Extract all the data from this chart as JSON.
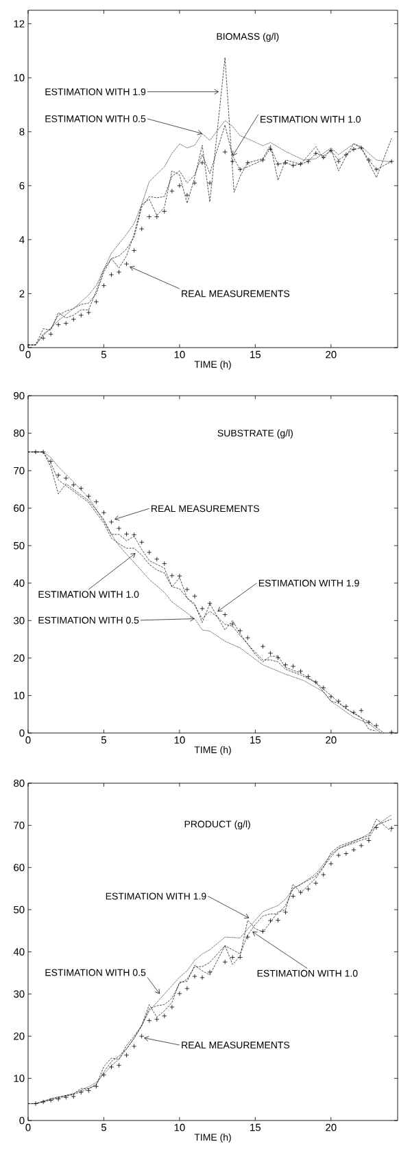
{
  "chart_data": [
    {
      "type": "line",
      "title": "BIOMASS (g/l)",
      "xlabel": "TIME (h)",
      "xlim": [
        0,
        24.4
      ],
      "xticks": [
        0,
        5,
        10,
        15,
        20
      ],
      "ylim": [
        0,
        12.5
      ],
      "yticks": [
        0,
        2,
        4,
        6,
        8,
        10,
        12
      ],
      "annotations": [
        {
          "text": "ESTIMATION WITH 1.9",
          "x": 12.6,
          "y": 9.48
        },
        {
          "text": "ESTIMATION WITH 0.5",
          "x": 11.5,
          "y": 7.93
        },
        {
          "text": "ESTIMATION WITH 1.0",
          "x": 13.5,
          "y": 7.1
        },
        {
          "text": "REAL MEASUREMENTS",
          "x": 6.7,
          "y": 3.0
        }
      ],
      "series": [
        {
          "type": "scatter",
          "marker": "cross",
          "color": "#000000",
          "x": [
            1,
            1.5,
            2,
            2.5,
            3,
            3.5,
            4,
            4.5,
            5,
            5.5,
            6,
            6.5,
            7,
            7.5,
            8,
            8.5,
            9,
            9.5,
            10,
            10.5,
            11,
            11.5,
            12,
            13,
            13.5,
            14,
            14.5,
            15.5,
            16,
            16.5,
            17,
            17.5,
            18,
            18.5,
            19,
            19.5,
            20,
            20.5,
            21,
            21.5,
            22,
            22.5,
            23,
            24
          ],
          "values": [
            0.35,
            0.5,
            0.85,
            0.9,
            1.05,
            1.2,
            1.3,
            1.7,
            2.3,
            2.7,
            2.8,
            3.1,
            3.6,
            4.4,
            4.85,
            4.85,
            5.05,
            5.8,
            6.0,
            5.65,
            6.1,
            6.85,
            6.1,
            7.25,
            6.9,
            6.6,
            6.85,
            6.95,
            7.35,
            6.8,
            6.85,
            6.75,
            6.8,
            6.9,
            7.2,
            7.05,
            7.3,
            6.9,
            7.15,
            7.35,
            7.4,
            6.95,
            6.6,
            6.9
          ]
        },
        {
          "line_style": "dotted",
          "color": "#000000",
          "x": [
            0,
            0.5,
            1,
            2,
            3,
            4,
            4.5,
            5,
            5.5,
            6,
            6.5,
            7,
            7.5,
            8,
            9,
            9.5,
            10,
            10.5,
            11,
            11.5,
            12,
            13,
            13.5,
            14,
            14.5,
            15.5,
            16,
            17,
            18.2,
            19,
            20,
            20.5,
            21.5,
            22,
            23,
            24
          ],
          "values": [
            0.1,
            0.1,
            0.45,
            1.0,
            1.45,
            1.95,
            2.3,
            2.9,
            3.5,
            3.85,
            4.2,
            4.6,
            5.3,
            6.15,
            6.7,
            7.2,
            7.55,
            7.4,
            7.5,
            7.93,
            7.68,
            8.41,
            8.2,
            7.85,
            7.74,
            7.48,
            7.6,
            7.27,
            6.95,
            7.0,
            7.4,
            7.15,
            7.55,
            7.45,
            6.95,
            6.88
          ]
        },
        {
          "line_style": "dashed",
          "color": "#000000",
          "x": [
            0,
            0.5,
            1,
            1.5,
            2,
            2.5,
            3,
            3.5,
            4,
            4.5,
            5,
            5.5,
            6,
            6.5,
            7,
            7.5,
            8,
            8.5,
            9,
            9.5,
            10,
            10.5,
            11,
            11.5,
            12,
            13,
            13.5,
            14,
            14.5,
            15.5,
            16,
            16.5,
            17,
            17.5,
            18,
            18.5,
            19,
            19.5,
            20,
            20.5,
            21,
            21.5,
            22,
            22.5,
            23,
            24
          ],
          "values": [
            0.1,
            0.1,
            0.5,
            0.7,
            1.2,
            1.35,
            1.45,
            1.6,
            1.65,
            2.0,
            2.8,
            3.3,
            3.4,
            3.65,
            4.1,
            5.2,
            5.6,
            5.55,
            5.6,
            6.35,
            6.55,
            6.1,
            6.4,
            7.15,
            6.45,
            8.25,
            7.1,
            6.6,
            6.7,
            6.95,
            7.4,
            6.8,
            6.85,
            6.75,
            6.8,
            6.9,
            7.2,
            7.1,
            7.3,
            6.95,
            7.15,
            7.35,
            7.4,
            6.95,
            6.6,
            6.9
          ]
        },
        {
          "line_style": "dashed",
          "color": "#000000",
          "x": [
            0,
            0.5,
            1,
            1.5,
            2,
            2.5,
            3,
            3.5,
            4,
            4.5,
            5,
            5.5,
            6,
            6.5,
            7,
            7.5,
            8,
            8.5,
            9,
            9.5,
            10,
            10.5,
            11,
            11.5,
            12,
            13,
            13.6,
            14,
            14.5,
            15.5,
            16,
            16.5,
            17,
            18,
            19,
            19.5,
            20,
            20.5,
            21,
            21.5,
            22,
            23,
            24
          ],
          "values": [
            0.1,
            0.1,
            0.7,
            0.65,
            1.3,
            1.1,
            1.2,
            1.4,
            1.4,
            2.1,
            2.9,
            3.3,
            2.95,
            3.4,
            4.2,
            5.3,
            5.5,
            4.9,
            5.2,
            6.55,
            6.4,
            5.35,
            6.3,
            7.5,
            5.4,
            10.75,
            5.75,
            6.35,
            6.85,
            7.0,
            7.5,
            6.2,
            6.95,
            6.8,
            7.45,
            7.0,
            7.35,
            6.55,
            7.1,
            7.55,
            7.4,
            6.3,
            7.75
          ]
        }
      ]
    },
    {
      "type": "line",
      "title": "SUBSTRATE (g/l)",
      "xlabel": "TIME (h)",
      "xlim": [
        0,
        24.4
      ],
      "xticks": [
        0,
        5,
        10,
        15,
        20
      ],
      "ylim": [
        0,
        90
      ],
      "yticks": [
        0,
        10,
        20,
        30,
        40,
        50,
        60,
        70,
        80,
        90
      ],
      "annotations": [
        {
          "text": "REAL MEASUREMENTS",
          "x": 5.7,
          "y": 57.0
        },
        {
          "text": "ESTIMATION WITH 1.0",
          "x": 7.1,
          "y": 48.0
        },
        {
          "text": "ESTIMATION WITH 0.5",
          "x": 11,
          "y": 30.5
        },
        {
          "text": "ESTIMATION WITH 1.9",
          "x": 12.5,
          "y": 32.4
        }
      ],
      "series": [
        {
          "type": "scatter",
          "marker": "cross",
          "color": "#000000",
          "x": [
            0.5,
            1,
            1.5,
            2,
            2.5,
            3,
            3.5,
            4,
            4.5,
            5,
            5.5,
            6,
            6.5,
            7,
            7.5,
            8,
            8.5,
            9,
            9.5,
            10,
            10.5,
            11,
            11.5,
            12,
            13,
            13.5,
            14,
            14.5,
            15.5,
            16,
            16.5,
            17,
            17.5,
            18,
            18.5,
            19,
            19.5,
            20,
            20.5,
            21,
            21.5,
            22,
            22.5,
            23,
            24
          ],
          "values": [
            75,
            75,
            72.5,
            68.8,
            68.0,
            66.2,
            65.3,
            63.2,
            61.7,
            58.8,
            56.3,
            54.6,
            53.1,
            52.9,
            50.9,
            48.2,
            46.4,
            45.2,
            42.0,
            41.9,
            38.3,
            36.5,
            33.2,
            34.6,
            31.6,
            29.1,
            27.3,
            25.4,
            23.1,
            21.3,
            20.1,
            18.2,
            17.8,
            16.5,
            15.1,
            13.6,
            12.1,
            9.7,
            8.5,
            7.1,
            5.5,
            6.0,
            2.9,
            2.0,
            0.2
          ]
        },
        {
          "line_style": "dotted",
          "color": "#000000",
          "x": [
            0,
            1,
            1.5,
            2,
            3,
            4,
            5,
            5.5,
            6,
            7,
            8,
            9,
            9.5,
            10,
            11,
            11.5,
            12,
            13,
            14,
            15.5,
            17,
            18.2,
            19.5,
            20,
            21.5,
            22.5,
            23.3
          ],
          "values": [
            75,
            75,
            73.5,
            71,
            67,
            62.8,
            56.5,
            53,
            50,
            45.5,
            41,
            37.5,
            35,
            33.5,
            30.5,
            27.5,
            27.2,
            24.5,
            22.7,
            18.2,
            15.7,
            14,
            11,
            8.5,
            4.2,
            2.5,
            0
          ]
        },
        {
          "line_style": "dashed",
          "color": "#000000",
          "x": [
            0,
            1,
            1.5,
            2,
            3,
            4,
            5,
            5.5,
            6,
            6.5,
            7,
            7.5,
            8,
            8.5,
            9,
            9.5,
            10,
            10.5,
            11,
            11.5,
            12,
            12.5,
            13,
            13.5,
            14,
            15,
            15.5,
            16,
            16.5,
            17,
            18,
            19,
            20,
            21,
            22,
            22.5,
            23,
            23.5
          ],
          "values": [
            75,
            75,
            72,
            67.5,
            64.5,
            61.5,
            56,
            52,
            50.5,
            49.3,
            49.3,
            47.5,
            45,
            43.5,
            42.7,
            39,
            38.5,
            36,
            34,
            30.5,
            32.5,
            31,
            29,
            28.5,
            26,
            21.5,
            19.5,
            19.5,
            19,
            17,
            15.5,
            13.5,
            10,
            6.5,
            4,
            3,
            1.5,
            0
          ]
        },
        {
          "line_style": "dashed",
          "color": "#000000",
          "x": [
            0,
            1,
            1.5,
            2,
            2.5,
            3,
            4,
            5,
            5.5,
            6,
            6.5,
            7,
            7.5,
            8,
            9,
            9.5,
            10,
            10.5,
            11,
            11.5,
            12,
            12.5,
            13,
            13.5,
            14,
            15,
            15.5,
            16,
            16.5,
            17,
            18,
            19,
            20,
            20.5,
            21,
            22,
            22.5,
            23
          ],
          "values": [
            75,
            75,
            71,
            63.8,
            66.5,
            65,
            62,
            57,
            53,
            53,
            51.3,
            52.5,
            49,
            46,
            44,
            39,
            41.5,
            36,
            34.5,
            29.5,
            34.5,
            31,
            27.5,
            30,
            26.5,
            21,
            19,
            20.5,
            20.5,
            17.5,
            16,
            13.5,
            8.5,
            8,
            6.5,
            4.2,
            1,
            0.5
          ]
        }
      ]
    },
    {
      "type": "line",
      "title": "PRODUCT (g/l)",
      "xlabel": "TIME (h)",
      "xlim": [
        0,
        24.4
      ],
      "xticks": [
        0,
        5,
        10,
        15,
        20
      ],
      "ylim": [
        0,
        80
      ],
      "yticks": [
        0,
        10,
        20,
        30,
        40,
        50,
        60,
        70,
        80
      ],
      "annotations": [
        {
          "text": "ESTIMATION WITH 1.9",
          "x": 14.6,
          "y": 48.0
        },
        {
          "text": "ESTIMATION WITH 0.5",
          "x": 8.7,
          "y": 30.0
        },
        {
          "text": "ESTIMATION WITH 1.0",
          "x": 14.8,
          "y": 44.8
        },
        {
          "text": "REAL MEASUREMENTS",
          "x": 7.65,
          "y": 19.6
        }
      ],
      "series": [
        {
          "type": "scatter",
          "marker": "cross",
          "color": "#000000",
          "x": [
            0.5,
            1,
            1.5,
            2,
            2.5,
            3,
            3.5,
            4,
            4.5,
            5,
            5.5,
            6,
            6.5,
            7,
            7.5,
            8,
            8.5,
            9,
            9.5,
            10,
            10.5,
            11,
            11.5,
            12,
            13,
            13.5,
            14,
            14.5,
            15.5,
            16,
            16.5,
            17,
            17.5,
            18,
            18.5,
            19,
            19.5,
            20,
            20.5,
            21,
            21.5,
            22,
            22.5,
            23,
            24
          ],
          "values": [
            4.0,
            4.4,
            4.8,
            5.1,
            5.5,
            5.7,
            6.7,
            7.1,
            8.1,
            10.8,
            12.7,
            13.1,
            15.5,
            17.6,
            20.0,
            23.7,
            24.0,
            24.8,
            26.9,
            30.1,
            31.3,
            34.2,
            33.9,
            35.2,
            37.6,
            38.7,
            38.7,
            43.5,
            44.9,
            47.4,
            47.5,
            49.4,
            53.2,
            54.1,
            54.9,
            56.3,
            58.3,
            60.9,
            62.9,
            63.3,
            64.2,
            65.2,
            66.4,
            69.5,
            69.3
          ]
        },
        {
          "line_style": "dotted",
          "color": "#000000",
          "x": [
            0,
            0.5,
            1,
            2,
            3,
            4,
            4.5,
            5,
            5.5,
            6,
            6.5,
            7,
            7.5,
            8,
            8.5,
            9,
            9.5,
            10,
            10.5,
            11,
            11.5,
            12,
            13,
            14,
            15,
            15.5,
            16.5,
            17,
            17.5,
            18,
            19,
            20,
            20.5,
            22,
            22.5,
            23,
            24
          ],
          "values": [
            4,
            4,
            4.6,
            5.5,
            6.4,
            8,
            9,
            11,
            13,
            14.5,
            17,
            19.5,
            22.5,
            26,
            28,
            30,
            32,
            34,
            35.5,
            38,
            39.5,
            40.5,
            43.5,
            43.3,
            47.5,
            49.5,
            51,
            52.5,
            55,
            56,
            58.5,
            63,
            64.5,
            67,
            68,
            70,
            72.5
          ]
        },
        {
          "line_style": "dashed",
          "color": "#000000",
          "x": [
            0,
            0.5,
            1,
            2,
            3,
            4,
            4.5,
            5,
            5.5,
            6,
            6.5,
            7,
            7.5,
            8,
            8.5,
            9,
            9.5,
            10,
            10.5,
            11,
            11.5,
            12,
            13,
            13.5,
            14,
            14.5,
            15,
            15.5,
            16,
            16.5,
            17,
            17.5,
            18,
            19,
            20,
            20.5,
            22,
            22.5,
            23,
            24
          ],
          "values": [
            4,
            4,
            4.4,
            5.3,
            6.2,
            7.5,
            8.6,
            11.5,
            14,
            15.3,
            17,
            19.5,
            22.5,
            26.5,
            27.2,
            27.5,
            29,
            32.5,
            33.5,
            36.5,
            36.5,
            37.5,
            41.5,
            40.5,
            39.5,
            44,
            46.5,
            48.5,
            49,
            49,
            51,
            55,
            56,
            58,
            62.5,
            64.5,
            66.5,
            67,
            70,
            71.5
          ]
        },
        {
          "line_style": "dashed",
          "color": "#000000",
          "x": [
            0,
            0.5,
            1,
            1.5,
            2,
            3,
            3.5,
            4,
            4.5,
            5,
            5.5,
            6,
            6.5,
            7,
            7.5,
            8,
            8.5,
            9,
            9.5,
            10,
            10.5,
            11,
            11.5,
            12,
            13,
            13.5,
            14,
            14.5,
            15,
            15.5,
            16,
            16.5,
            17,
            17.5,
            18,
            19,
            19.5,
            20,
            20.5,
            22,
            22.5,
            23,
            23.5,
            24
          ],
          "values": [
            4,
            4,
            4.5,
            5.2,
            5.6,
            6.3,
            7.6,
            7.6,
            8.4,
            12.8,
            14.8,
            14.5,
            17.8,
            20,
            22.5,
            27.5,
            24.5,
            26,
            28,
            32.8,
            33,
            36.8,
            35.5,
            34.5,
            41.5,
            37,
            39,
            47.5,
            45.5,
            44.7,
            47,
            49.5,
            50,
            56,
            54,
            57.5,
            60,
            63.5,
            65,
            67,
            67.5,
            71.5,
            70,
            68.5
          ]
        }
      ]
    }
  ]
}
